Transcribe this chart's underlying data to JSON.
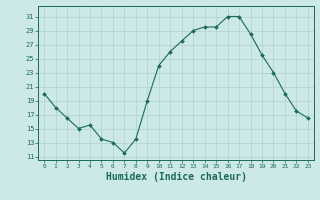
{
  "x": [
    0,
    1,
    2,
    3,
    4,
    5,
    6,
    7,
    8,
    9,
    10,
    11,
    12,
    13,
    14,
    15,
    16,
    17,
    18,
    19,
    20,
    21,
    22,
    23
  ],
  "y": [
    20,
    18,
    16.5,
    15,
    15.5,
    13.5,
    13,
    11.5,
    13.5,
    19,
    24,
    26,
    27.5,
    29,
    29.5,
    29.5,
    31,
    31,
    28.5,
    25.5,
    23,
    20,
    17.5,
    16.5
  ],
  "line_color": "#1a6b5a",
  "marker": "D",
  "marker_size": 2.0,
  "bg_color": "#cce8e8",
  "grid_color": "#b0d0d0",
  "xlabel": "Humidex (Indice chaleur)",
  "xlabel_fontsize": 7,
  "yticks": [
    11,
    13,
    15,
    17,
    19,
    21,
    23,
    25,
    27,
    29,
    31
  ],
  "xticks": [
    0,
    1,
    2,
    3,
    4,
    5,
    6,
    7,
    8,
    9,
    10,
    11,
    12,
    13,
    14,
    15,
    16,
    17,
    18,
    19,
    20,
    21,
    22,
    23
  ],
  "xlim": [
    -0.5,
    23.5
  ],
  "ylim": [
    10.5,
    32.5
  ]
}
